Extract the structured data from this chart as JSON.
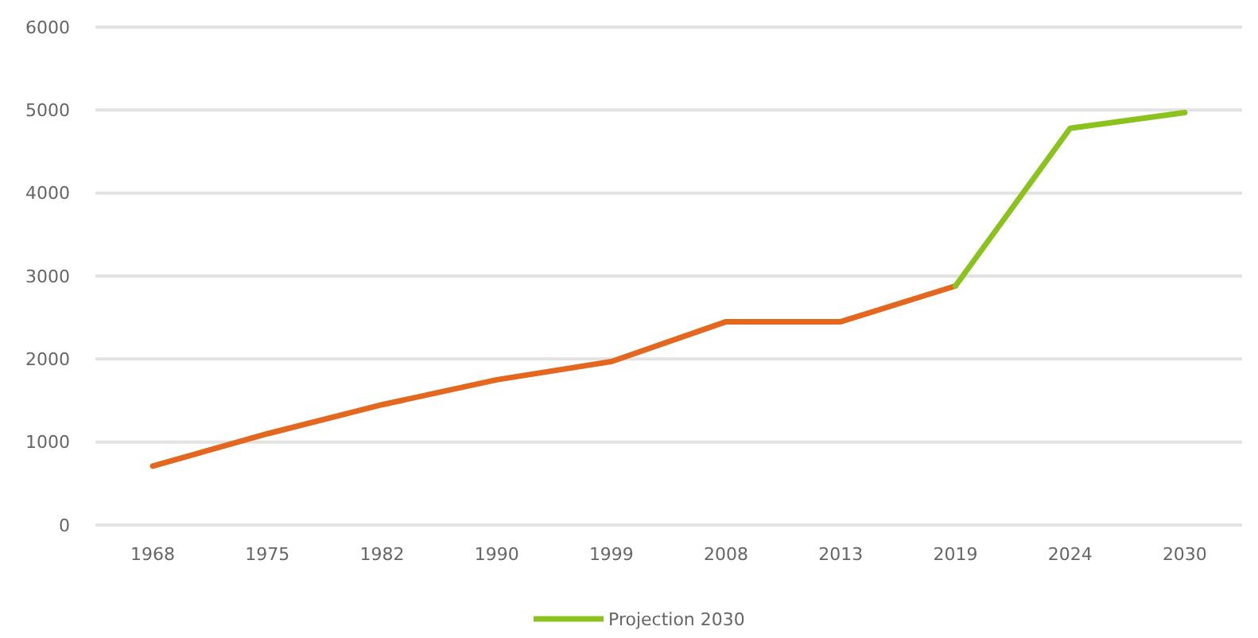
{
  "chart_data": {
    "type": "line",
    "categories": [
      "1968",
      "1975",
      "1982",
      "1990",
      "1999",
      "2008",
      "2013",
      "2019",
      "2024",
      "2030"
    ],
    "series": [
      {
        "color": "#e3671e",
        "values": [
          710,
          1100,
          1450,
          1750,
          1970,
          2450,
          2450,
          2880,
          null,
          null
        ]
      },
      {
        "name": "Projection 2030",
        "color": "#8cc21e",
        "values": [
          null,
          null,
          null,
          null,
          null,
          null,
          null,
          2880,
          4780,
          4970
        ]
      }
    ],
    "ylim": [
      0,
      6000
    ],
    "yticks": [
      0,
      1000,
      2000,
      3000,
      4000,
      5000,
      6000
    ],
    "grid": "y",
    "legend": "bottom",
    "line_style": "solid",
    "marker": "none"
  }
}
